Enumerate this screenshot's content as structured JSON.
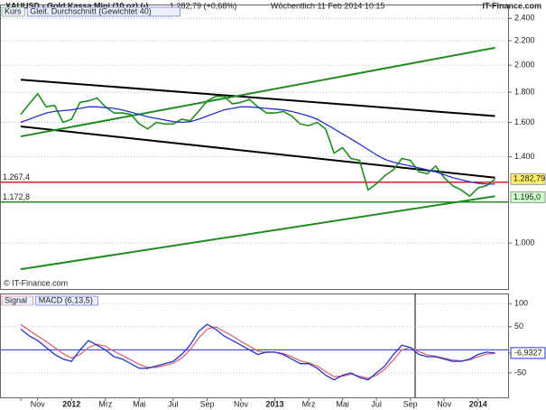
{
  "chart_data": [
    {
      "type": "line",
      "title": "XAUUSD - Gold Kassa Mini (10 oz) (-)",
      "subtitle": "1.282,79 (+0,68%)",
      "timestamp": "Wöchentlich  11 Feb 2014 10:15",
      "source": "IT-Finance.com",
      "copyright": "© IT-Finance.com",
      "log_scale": true,
      "grid": true,
      "categories": [
        "",
        null,
        "Nov",
        null,
        null,
        null,
        "2012",
        null,
        null,
        null,
        "Mrz",
        null,
        null,
        null,
        "Mai",
        null,
        null,
        null,
        "Jul",
        null,
        null,
        null,
        "Sep",
        null,
        null,
        null,
        "Nov",
        null,
        null,
        null,
        "2013",
        null,
        null,
        null,
        "Mrz",
        null,
        null,
        null,
        "Mai",
        null,
        null,
        null,
        "Jul",
        null,
        null,
        null,
        "Sep",
        null,
        null,
        null,
        "Nov",
        null,
        null,
        null,
        "2014",
        null,
        null
      ],
      "series": [
        {
          "name": "Kurs",
          "color": "#1e8c1e",
          "values": [
            1650,
            1720,
            1790,
            1700,
            1710,
            1600,
            1620,
            1730,
            1740,
            1760,
            1700,
            1660,
            1660,
            1650,
            1590,
            1560,
            1600,
            1590,
            1590,
            1620,
            1610,
            1670,
            1740,
            1770,
            1770,
            1720,
            1730,
            1750,
            1700,
            1660,
            1660,
            1670,
            1640,
            1590,
            1580,
            1600,
            1560,
            1420,
            1450,
            1390,
            1380,
            1230,
            1260,
            1300,
            1330,
            1390,
            1380,
            1320,
            1310,
            1350,
            1290,
            1250,
            1230,
            1200,
            1240,
            1250,
            1283
          ]
        },
        {
          "name": "Gleit. Durchschnitt (Gewichtet 40)",
          "color": "#2233cc",
          "values": [
            1600,
            1620,
            1640,
            1660,
            1670,
            1675,
            1680,
            1690,
            1700,
            1700,
            1695,
            1690,
            1680,
            1665,
            1650,
            1635,
            1625,
            1615,
            1605,
            1600,
            1605,
            1620,
            1640,
            1660,
            1680,
            1690,
            1700,
            1700,
            1695,
            1690,
            1685,
            1680,
            1670,
            1655,
            1640,
            1620,
            1590,
            1560,
            1530,
            1500,
            1470,
            1440,
            1410,
            1385,
            1370,
            1360,
            1350,
            1340,
            1330,
            1320,
            1305,
            1290,
            1280,
            1270,
            1262,
            1258,
            1258
          ]
        }
      ],
      "trendlines": [
        {
          "x": [
            0,
            56
          ],
          "values": [
            1890,
            1640
          ],
          "color": "#000000"
        },
        {
          "x": [
            0,
            56
          ],
          "values": [
            1575,
            1290
          ],
          "color": "#000000"
        },
        {
          "x": [
            0,
            56
          ],
          "values": [
            1515,
            2140
          ],
          "color": "#1e8c1e"
        },
        {
          "x": [
            0,
            56
          ],
          "values": [
            903,
            1200
          ],
          "color": "#1e8c1e"
        }
      ],
      "hlines": [
        {
          "value": 1267.4,
          "label": "1.267,4",
          "color": "#dd2222"
        },
        {
          "value": 1172.8,
          "label": "1.172,8",
          "color": "#1e8c1e"
        }
      ],
      "ylim": [
        836,
        2533
      ],
      "yticks": [
        {
          "value": 2400,
          "label": "2.400"
        },
        {
          "value": 2200,
          "label": "2.200"
        },
        {
          "value": 2000,
          "label": "2.000"
        },
        {
          "value": 1800,
          "label": "1.800"
        },
        {
          "value": 1600,
          "label": "1.600"
        },
        {
          "value": 1400,
          "label": "1.400"
        },
        {
          "value": 1000,
          "label": "1.000"
        }
      ],
      "price_tags": [
        {
          "value": 1282.79,
          "label": "1.282,79",
          "color": "#ffee66"
        },
        {
          "value": 1195,
          "label": "1.195,0",
          "color": "#ccffcc"
        }
      ]
    },
    {
      "type": "line",
      "grid": true,
      "series": [
        {
          "name": "Signal",
          "color": "#dd6677",
          "values": [
            55,
            42,
            30,
            18,
            5,
            -8,
            -18,
            -10,
            5,
            12,
            8,
            -3,
            -12,
            -22,
            -32,
            -38,
            -38,
            -34,
            -29,
            -18,
            0,
            25,
            45,
            50,
            40,
            30,
            18,
            8,
            -3,
            -6,
            -5,
            -8,
            -15,
            -24,
            -28,
            -35,
            -47,
            -58,
            -57,
            -53,
            -57,
            -62,
            -55,
            -42,
            -22,
            0,
            5,
            -4,
            -11,
            -14,
            -18,
            -22,
            -24,
            -22,
            -15,
            -9,
            -8
          ]
        },
        {
          "name": "MACD (6,13,5)",
          "color": "#2233cc",
          "values": [
            45,
            30,
            20,
            5,
            -10,
            -20,
            -25,
            0,
            20,
            10,
            0,
            -15,
            -20,
            -30,
            -40,
            -40,
            -35,
            -30,
            -25,
            -10,
            10,
            40,
            55,
            45,
            30,
            20,
            10,
            0,
            -10,
            -5,
            -5,
            -10,
            -20,
            -30,
            -30,
            -40,
            -55,
            -65,
            -55,
            -50,
            -60,
            -65,
            -50,
            -35,
            -10,
            10,
            5,
            -10,
            -15,
            -15,
            -20,
            -25,
            -25,
            -20,
            -10,
            -5,
            -7
          ]
        }
      ],
      "ylim": [
        -103,
        122
      ],
      "yticks": [
        100,
        50,
        -50,
        {
          "value": -6.9327,
          "label": "-6,9327"
        }
      ]
    }
  ]
}
